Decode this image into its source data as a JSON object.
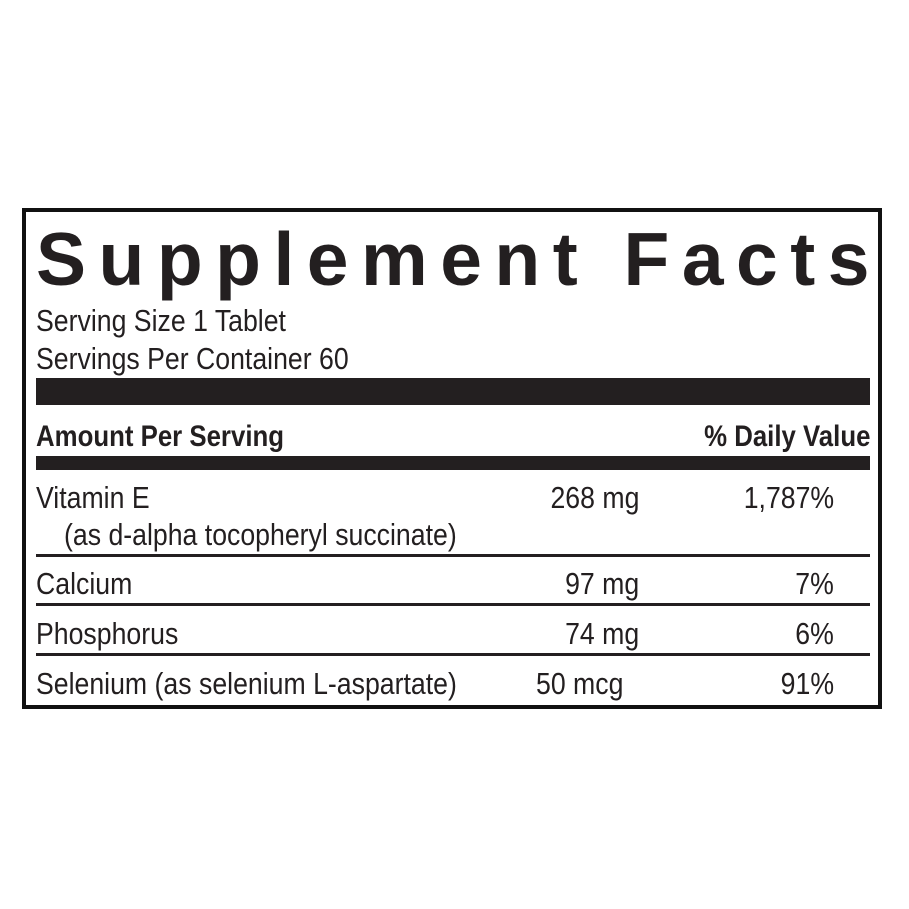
{
  "label": {
    "title": "Supplement Facts",
    "serving_size": "Serving Size 1 Tablet",
    "servings_per_container": "Servings Per Container 60",
    "header_amount": "Amount Per Serving",
    "header_dv": "% Daily Value",
    "rows": [
      {
        "name": "Vitamin E",
        "sub": "(as d-alpha tocopheryl succinate)",
        "amount": "268 mg",
        "dv": "1,787%"
      },
      {
        "name": "Calcium",
        "amount": "97 mg",
        "dv": "7%"
      },
      {
        "name": "Phosphorus",
        "amount": "74 mg",
        "dv": "6%"
      },
      {
        "name": "Selenium (as selenium L-aspartate)",
        "amount": "50 mcg",
        "dv": "91%"
      }
    ]
  }
}
